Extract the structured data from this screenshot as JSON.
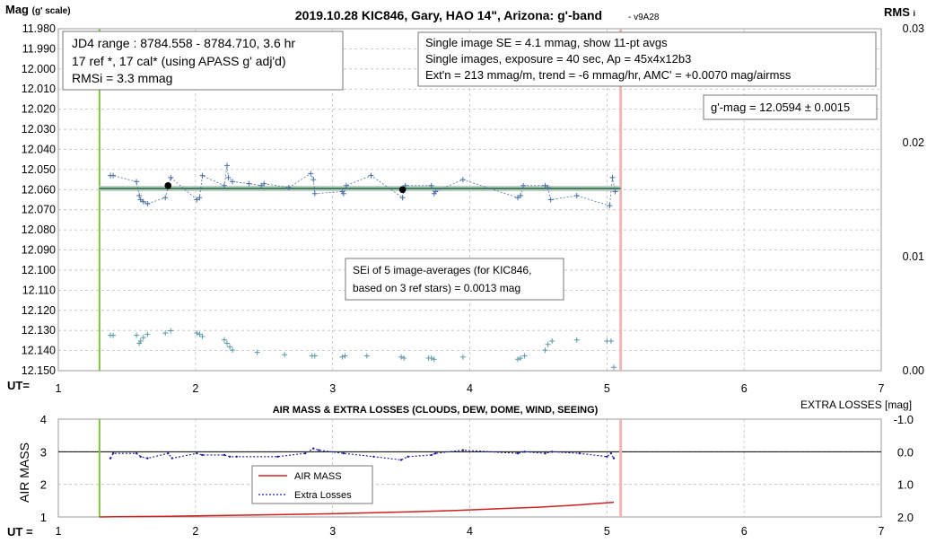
{
  "title": "2019.10.28 KIC846, Gary, HAO 14\", Arizona: g'-band",
  "version_tag": "- v9A28",
  "y_left_label_main": "Mag",
  "y_left_label_sub": "(g' scale)",
  "y_right_label_main": "RMS",
  "y_right_label_sub": "i",
  "ut_label": "UT=",
  "ut_label_bottom": "UT =",
  "top_axis": {
    "x_ticks": [
      "1",
      "2",
      "3",
      "4",
      "5",
      "6",
      "7"
    ],
    "y_ticks": [
      "11.980",
      "11.990",
      "12.000",
      "12.010",
      "12.020",
      "12.030",
      "12.040",
      "12.050",
      "12.060",
      "12.070",
      "12.080",
      "12.090",
      "12.100",
      "12.110",
      "12.120",
      "12.130",
      "12.140",
      "12.150"
    ],
    "rms_ticks": [
      "0.03",
      "0.02",
      "0.01",
      "0.00"
    ]
  },
  "box_left": {
    "line1": "JD4 range : 8784.558 - 8784.710,  3.6  hr",
    "line2": "17 ref *, 17 cal* (using APASS g' adj'd)",
    "line3": "RMSi = 3.3 mmag"
  },
  "box_right": {
    "line1": "Single image SE = 4.1 mmag, show  11-pt avgs",
    "line2": "Single images, exposure = 40 sec, Ap = 45x4x12b3",
    "line3": "Ext'n = 213 mmag/m, trend =  -6 mmag/hr, AMC' = +0.0070 mag/airmss"
  },
  "gmag_box": "g'-mag = 12.0594 ± 0.0015",
  "sei_box": {
    "line1": "SEi of 5 image-averages (for KIC846,",
    "line2": "based on 3 ref stars) = 0.0013 mag"
  },
  "bottom_chart": {
    "title": "AIR MASS & EXTRA LOSSES (CLOUDS, DEW, DOME, WIND, SEEING)",
    "y_left_label": "AIR MASS",
    "y_right_label": "EXTRA LOSSES [mag]",
    "y_left_ticks": [
      "4",
      "3",
      "2",
      "1"
    ],
    "y_right_ticks": [
      "-1.0",
      "0.0",
      "1.0",
      "2.0"
    ],
    "x_ticks": [
      "1",
      "2",
      "3",
      "4",
      "5",
      "6",
      "7"
    ],
    "legend": {
      "airmass": "AIR MASS",
      "extra": "Extra Losses"
    }
  },
  "colors": {
    "data_blue": "#4a6fa5",
    "rms_teal": "#5a9aa8",
    "fit_green": "#2e8b57",
    "band_gray": "#c8c8c8",
    "start_line": "#7fc241",
    "end_line": "#f2b5b5",
    "airmass_red": "#cc2222",
    "extra_navy": "#1a1aa0"
  },
  "chart_data": [
    {
      "type": "scatter",
      "title": "2019.10.28 KIC846, Gary, HAO 14\", Arizona: g'-band",
      "xlabel": "UT=",
      "ylabel": "Mag (g' scale)",
      "y2label": "RMS i",
      "xlim": [
        1,
        7
      ],
      "ylim": [
        11.98,
        12.15
      ],
      "y2lim": [
        0.0,
        0.03
      ],
      "y_inverted": true,
      "grid": true,
      "start_ut": 1.3,
      "end_ut": 5.1,
      "fit_level": 12.0594,
      "series": [
        {
          "kind": "single_images",
          "x": [
            1.38,
            1.4,
            1.57,
            1.59,
            1.6,
            1.62,
            1.65,
            1.78,
            1.82,
            2.01,
            2.03,
            2.05,
            2.21,
            2.23,
            2.24,
            2.27,
            2.39,
            2.48,
            2.5,
            2.68,
            2.84,
            2.86,
            2.87,
            3.07,
            3.08,
            3.1,
            3.28,
            3.51,
            3.53,
            3.72,
            3.74,
            3.75,
            3.95,
            4.35,
            4.37,
            4.39,
            4.55,
            4.57,
            4.59,
            4.78,
            5.02,
            5.04,
            5.06
          ],
          "y": [
            12.053,
            12.053,
            12.056,
            12.063,
            12.065,
            12.066,
            12.067,
            12.064,
            12.054,
            12.065,
            12.064,
            12.053,
            12.058,
            12.048,
            12.054,
            12.056,
            12.057,
            12.058,
            12.057,
            12.059,
            12.052,
            12.055,
            12.062,
            12.061,
            12.062,
            12.058,
            12.053,
            12.064,
            12.058,
            12.058,
            12.062,
            12.061,
            12.055,
            12.064,
            12.063,
            12.058,
            12.058,
            12.059,
            12.065,
            12.063,
            12.068,
            12.054,
            12.061
          ]
        },
        {
          "kind": "image_averages",
          "x": [
            1.8,
            3.51
          ],
          "y": [
            12.058,
            12.06
          ]
        },
        {
          "kind": "rms_i",
          "x": [
            1.38,
            1.4,
            1.57,
            1.59,
            1.6,
            1.62,
            1.65,
            1.78,
            1.82,
            2.01,
            2.03,
            2.05,
            2.21,
            2.23,
            2.25,
            2.27,
            2.45,
            2.65,
            2.85,
            2.87,
            3.07,
            3.09,
            3.25,
            3.5,
            3.52,
            3.7,
            3.72,
            3.74,
            3.95,
            4.35,
            4.37,
            4.4,
            4.55,
            4.57,
            4.6,
            4.78,
            5.0,
            5.03,
            5.05
          ],
          "y": [
            0.0031,
            0.0031,
            0.0031,
            0.0024,
            0.0026,
            0.0029,
            0.0032,
            0.0033,
            0.0035,
            0.0033,
            0.0032,
            0.003,
            0.0027,
            0.0024,
            0.0021,
            0.0018,
            0.0016,
            0.0014,
            0.0013,
            0.0013,
            0.0012,
            0.0013,
            0.0013,
            0.0012,
            0.0011,
            0.0011,
            0.0011,
            0.001,
            0.0012,
            0.001,
            0.0011,
            0.0013,
            0.0018,
            0.0023,
            0.0026,
            0.0027,
            0.0026,
            0.0026,
            0.0003
          ]
        }
      ]
    },
    {
      "type": "line",
      "title": "AIR MASS & EXTRA LOSSES (CLOUDS, DEW, DOME, WIND, SEEING)",
      "xlabel": "UT =",
      "ylabel": "AIR MASS",
      "y2label": "EXTRA LOSSES [mag]",
      "xlim": [
        1,
        7
      ],
      "ylim": [
        1,
        4
      ],
      "y2lim": [
        2.0,
        -1.0
      ],
      "grid": true,
      "series": [
        {
          "name": "AIR MASS",
          "x": [
            1.3,
            1.5,
            1.8,
            2.1,
            2.4,
            2.7,
            3.0,
            3.3,
            3.6,
            3.9,
            4.2,
            4.5,
            4.8,
            5.05
          ],
          "y": [
            1.0,
            1.01,
            1.02,
            1.04,
            1.06,
            1.08,
            1.1,
            1.13,
            1.16,
            1.2,
            1.25,
            1.3,
            1.37,
            1.45
          ]
        },
        {
          "name": "Extra Losses",
          "x": [
            1.38,
            1.4,
            1.57,
            1.6,
            1.65,
            1.8,
            1.83,
            2.01,
            2.05,
            2.21,
            2.25,
            2.3,
            2.6,
            2.8,
            2.86,
            2.9,
            3.08,
            3.3,
            3.5,
            3.55,
            3.72,
            3.75,
            3.95,
            4.35,
            4.4,
            4.55,
            4.6,
            4.8,
            5.0,
            5.03,
            5.05
          ],
          "y": [
            0.2,
            0.05,
            0.05,
            0.15,
            0.2,
            0.05,
            0.2,
            0.05,
            0.1,
            0.1,
            0.15,
            0.15,
            0.15,
            0.05,
            -0.1,
            -0.05,
            0.05,
            0.15,
            0.25,
            0.15,
            0.1,
            0.05,
            -0.05,
            0.05,
            0.0,
            0.05,
            0.0,
            0.05,
            0.15,
            0.05,
            0.2
          ]
        }
      ]
    }
  ]
}
